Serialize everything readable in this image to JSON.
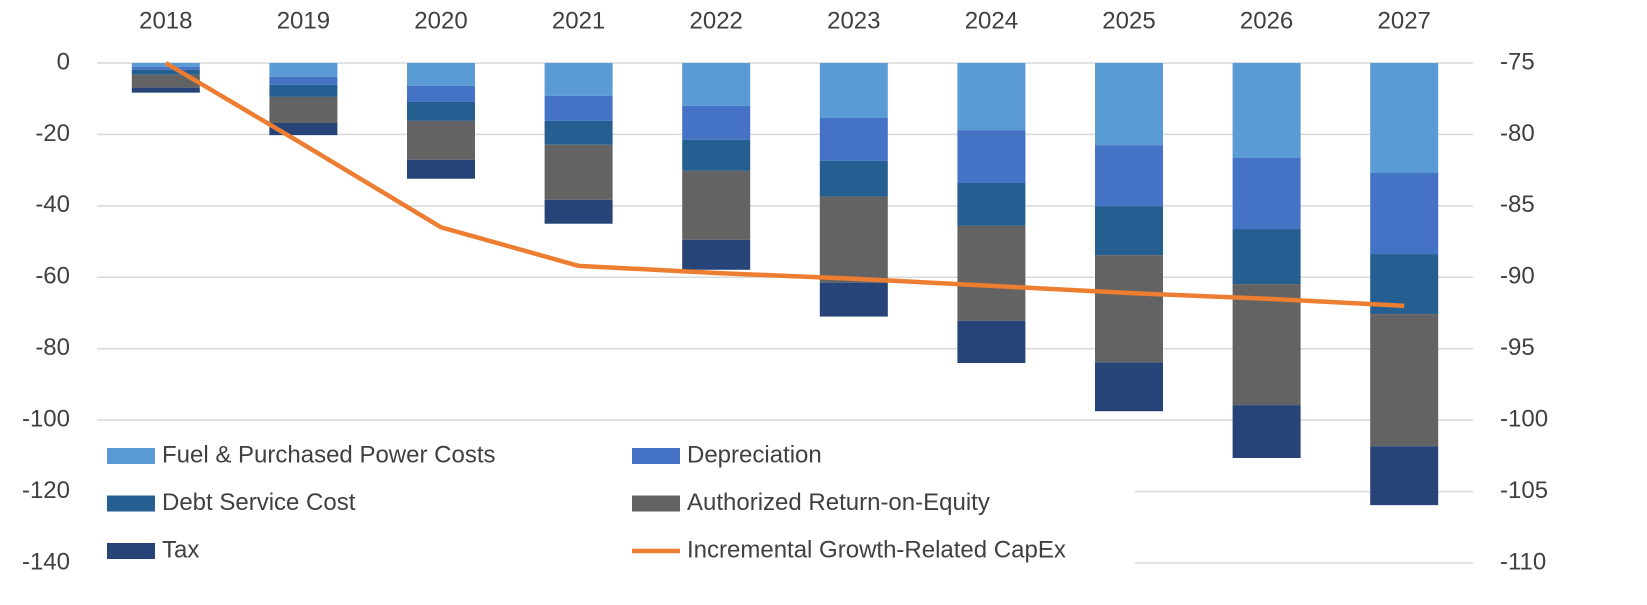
{
  "chart_data": {
    "type": "bar",
    "stacked": true,
    "categories": [
      "2018",
      "2019",
      "2020",
      "2021",
      "2022",
      "2023",
      "2024",
      "2025",
      "2026",
      "2027"
    ],
    "series": [
      {
        "name": "Fuel & Purchased Power Costs",
        "color": "#5b9bd5",
        "values": [
          -1.1,
          -3.9,
          -6.4,
          -9.2,
          -12,
          -15.4,
          -18.8,
          -23,
          -26.6,
          -30.8
        ]
      },
      {
        "name": "Depreciation",
        "color": "#4472c4",
        "values": [
          -0.8,
          -2.2,
          -4.5,
          -7,
          -9.5,
          -12,
          -14.8,
          -17.1,
          -19.9,
          -22.7
        ]
      },
      {
        "name": "Debt Service Cost",
        "color": "#255e91",
        "values": [
          -1.4,
          -3.4,
          -5.3,
          -6.7,
          -8.7,
          -10,
          -12,
          -13.7,
          -15.4,
          -16.8
        ]
      },
      {
        "name": "Authorized Return-on-Equity",
        "color": "#636363",
        "values": [
          -3.6,
          -7.3,
          -10.9,
          -15.4,
          -19.3,
          -24.1,
          -26.6,
          -30,
          -33.9,
          -37
        ]
      },
      {
        "name": "Tax",
        "color": "#264478",
        "values": [
          -1.4,
          -3.4,
          -5.3,
          -6.7,
          -8.4,
          -9.5,
          -11.8,
          -13.7,
          -14.8,
          -16.5
        ]
      },
      {
        "name": "Incremental Growth-Related CapEx",
        "color": "#ed7d31",
        "type": "line",
        "axis": "y2",
        "values": [
          -75,
          -80.7,
          -86.5,
          -89.2,
          -89.7,
          -90.1,
          -90.6,
          -91.1,
          -91.5,
          -92
        ]
      }
    ],
    "ylim": [
      -140,
      0
    ],
    "yticks": [
      0,
      -20,
      -40,
      -60,
      -80,
      -100,
      -120,
      -140
    ],
    "y2lim": [
      -110,
      -75
    ],
    "y2ticks": [
      -75,
      -80,
      -85,
      -90,
      -95,
      -100,
      -105,
      -110
    ],
    "grid": true,
    "legend": "bottom-left"
  }
}
